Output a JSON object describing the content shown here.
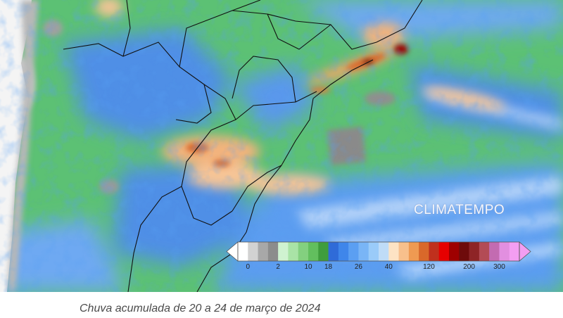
{
  "map": {
    "watermark": "CLIMATEMPO"
  },
  "legend": {
    "colors": [
      "#ffffff",
      "#d2d2d2",
      "#a8a8a8",
      "#8c8c8c",
      "#cff2d0",
      "#a9e3a6",
      "#83d07f",
      "#62bf5e",
      "#3f9d3c",
      "#2f6bd8",
      "#3f86ea",
      "#5b9ff2",
      "#79b5f6",
      "#9acbf9",
      "#bfdcf7",
      "#fde3c4",
      "#f8c08c",
      "#ef9a52",
      "#d9682a",
      "#c0301d",
      "#e60000",
      "#9e0000",
      "#6e0b0b",
      "#8e2426",
      "#b34b55",
      "#c36bb1",
      "#e28fe0",
      "#f39ef2"
    ],
    "tick_labels": [
      {
        "text": "0",
        "after_swatch": 1
      },
      {
        "text": "2",
        "after_swatch": 4
      },
      {
        "text": "10",
        "after_swatch": 7
      },
      {
        "text": "18",
        "after_swatch": 9
      },
      {
        "text": "26",
        "after_swatch": 12
      },
      {
        "text": "40",
        "after_swatch": 15
      },
      {
        "text": "120",
        "after_swatch": 19
      },
      {
        "text": "200",
        "after_swatch": 23
      },
      {
        "text": "300",
        "after_swatch": 26
      }
    ]
  },
  "caption": {
    "text": "Chuva acumulada de 20 a 24 de março de 2024"
  }
}
